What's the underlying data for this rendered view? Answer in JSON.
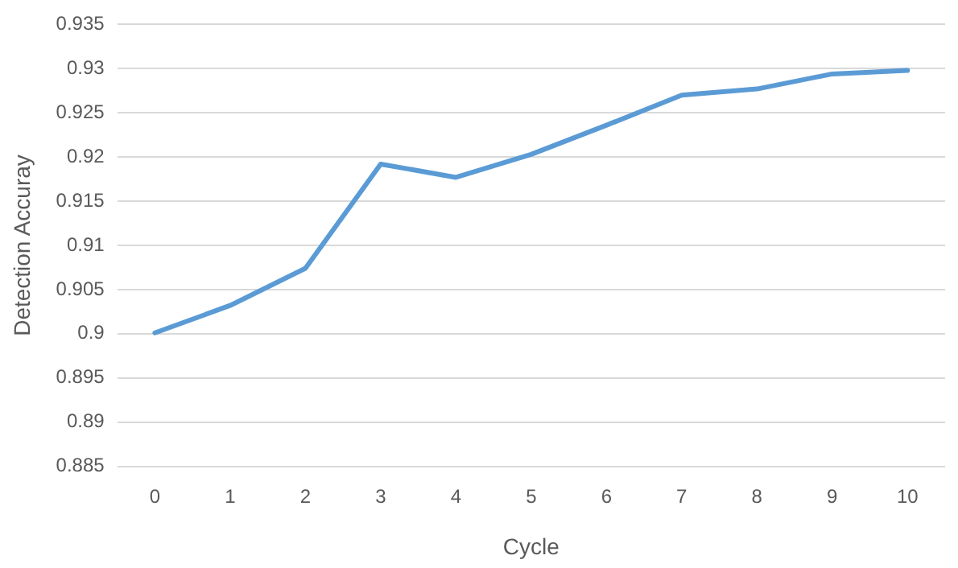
{
  "chart_data": {
    "type": "line",
    "xlabel": "Cycle",
    "ylabel": "Detection Accuray",
    "categories": [
      "0",
      "1",
      "2",
      "3",
      "4",
      "5",
      "6",
      "7",
      "8",
      "9",
      "10"
    ],
    "series": [
      {
        "color": "#5b9bd5",
        "values": [
          0.9001,
          0.9032,
          0.9074,
          0.9192,
          0.9177,
          0.9203,
          0.9236,
          0.927,
          0.9277,
          0.9294,
          0.9298
        ]
      }
    ],
    "ylim": [
      0.885,
      0.935
    ],
    "yticks": [
      0.885,
      0.89,
      0.895,
      0.9,
      0.905,
      0.91,
      0.915,
      0.92,
      0.925,
      0.93,
      0.935
    ],
    "grid": "y",
    "legend": false,
    "marker": "none",
    "line_style": "solid"
  }
}
